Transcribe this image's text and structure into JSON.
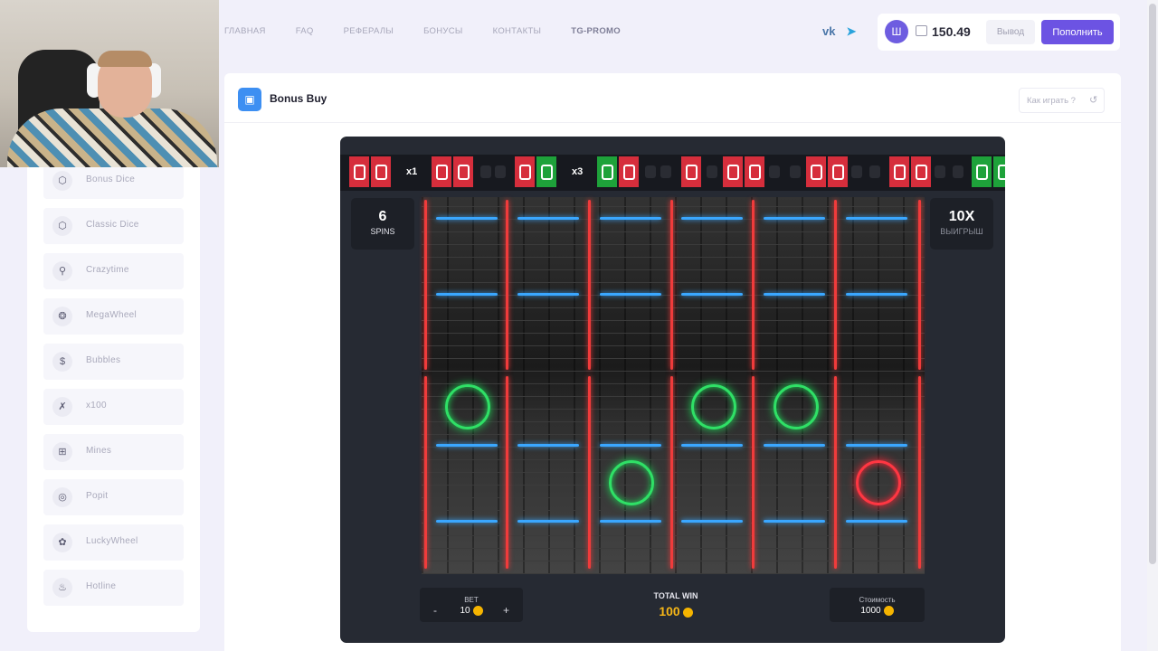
{
  "nav": {
    "items": [
      "ГЛАВНАЯ",
      "FAQ",
      "РЕФЕРАЛЫ",
      "БОНУСЫ",
      "КОНТАКТЫ",
      "TG-PROMO"
    ],
    "social": [
      "vk-icon",
      "telegram-icon"
    ]
  },
  "account": {
    "avatar_letter": "Ш",
    "balance": "150.49",
    "withdraw_label": "Вывод",
    "deposit_label": "Пополнить"
  },
  "sidebar": {
    "items": [
      {
        "label": "Bonus Dice",
        "icon": "dice-icon"
      },
      {
        "label": "Classic Dice",
        "icon": "dice-icon"
      },
      {
        "label": "Crazytime",
        "icon": "wand-icon"
      },
      {
        "label": "MegaWheel",
        "icon": "wheel-icon"
      },
      {
        "label": "Bubbles",
        "icon": "dollar-icon"
      },
      {
        "label": "x100",
        "icon": "x100-icon"
      },
      {
        "label": "Mines",
        "icon": "grid-icon"
      },
      {
        "label": "Popit",
        "icon": "circle-icon"
      },
      {
        "label": "LuckyWheel",
        "icon": "lucky-icon"
      },
      {
        "label": "Hotline",
        "icon": "flame-icon"
      }
    ]
  },
  "page": {
    "title": "Bonus Buy",
    "howto_label": "Как играть ?"
  },
  "game": {
    "strip_multipliers": [
      "x1",
      "x3"
    ],
    "spins_value": "6",
    "spins_label": "SPINS",
    "win_value": "10X",
    "win_label": "выигрыш",
    "bet_label": "BET",
    "bet_value": "10",
    "bet_minus": "-",
    "bet_plus": "+",
    "total_win_label": "TOTAL WIN",
    "total_win_value": "100",
    "cost_label": "Стоимость",
    "cost_value": "1000",
    "colors": {
      "red": "#d62e3c",
      "green": "#1ea23a",
      "neon_blue": "#3aa7ff",
      "accent": "#6c53e3"
    }
  }
}
